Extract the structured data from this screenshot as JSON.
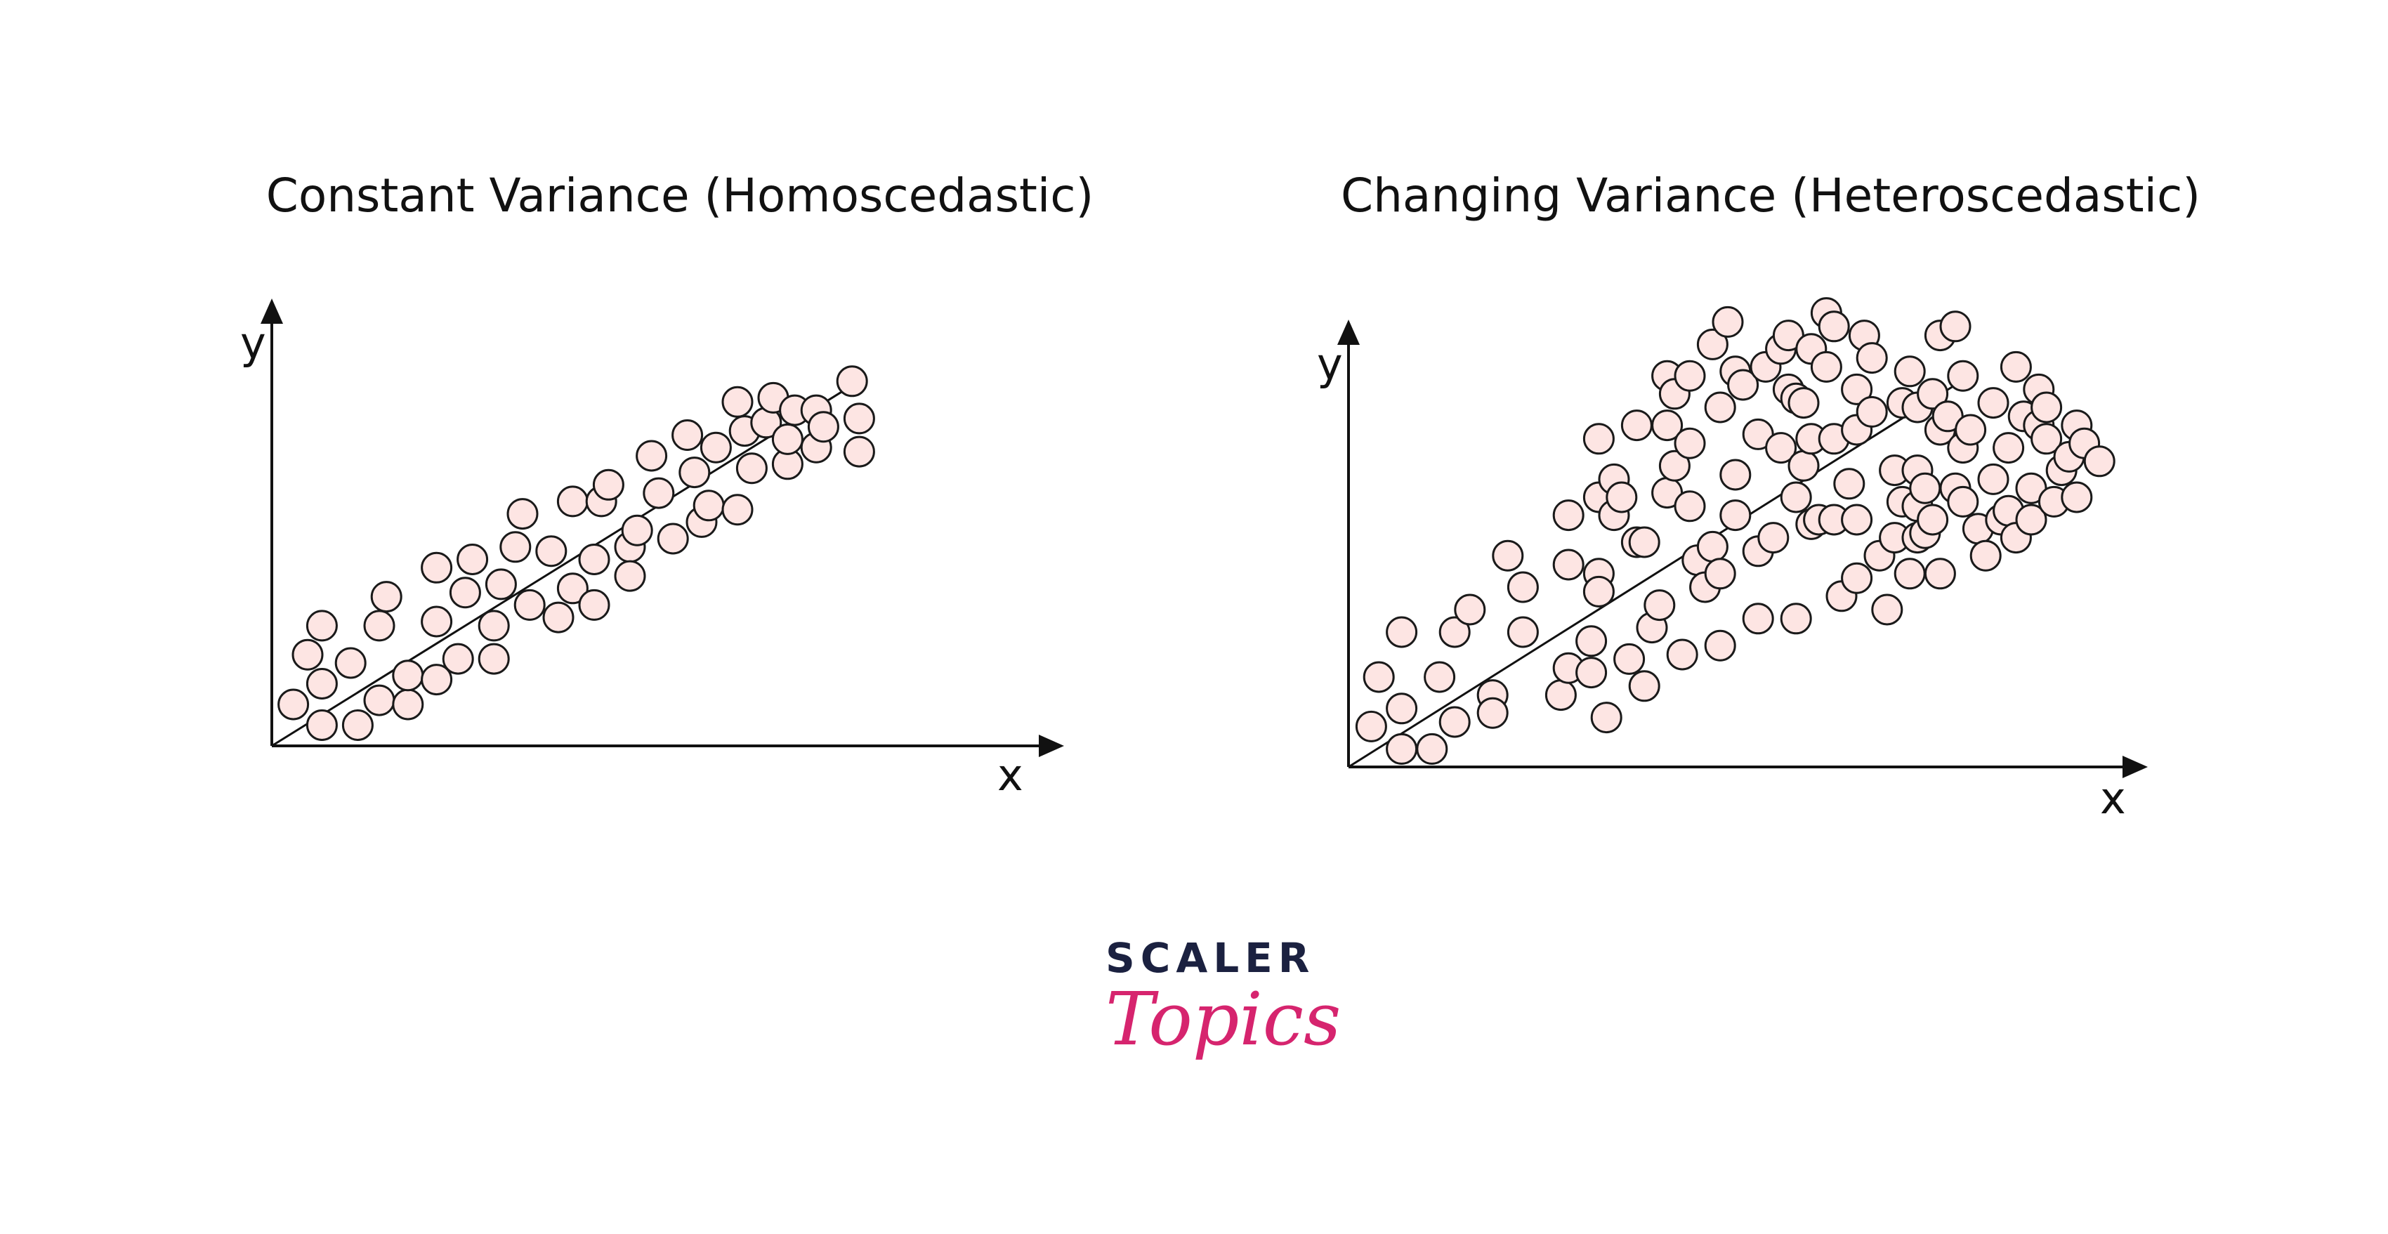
{
  "colors": {
    "marker_fill": "#fde5e3",
    "marker_stroke": "#1a1a1a",
    "axis": "#111111",
    "logo_dark": "#1b2140",
    "logo_pink": "#d6246e"
  },
  "branding": {
    "line1": "SCALER",
    "line2": "Topics"
  },
  "chart_data": [
    {
      "type": "scatter",
      "title": "Constant Variance (Homoscedastic)",
      "xlabel": "x",
      "ylabel": "y",
      "xlim": [
        0,
        100
      ],
      "ylim": [
        0,
        100
      ],
      "axis_ticks": false,
      "grid": false,
      "trend_line": {
        "x": [
          0,
          81
        ],
        "y": [
          0,
          87
        ]
      },
      "points": [
        [
          3,
          10
        ],
        [
          5,
          22
        ],
        [
          7,
          5
        ],
        [
          7,
          15
        ],
        [
          7,
          29
        ],
        [
          11,
          20
        ],
        [
          12,
          5
        ],
        [
          15,
          11
        ],
        [
          15,
          29
        ],
        [
          16,
          36
        ],
        [
          19,
          10
        ],
        [
          19,
          17
        ],
        [
          23,
          16
        ],
        [
          23,
          30
        ],
        [
          23,
          43
        ],
        [
          26,
          21
        ],
        [
          27,
          37
        ],
        [
          28,
          45
        ],
        [
          31,
          21
        ],
        [
          31,
          29
        ],
        [
          32,
          39
        ],
        [
          34,
          48
        ],
        [
          35,
          56
        ],
        [
          36,
          34
        ],
        [
          39,
          47
        ],
        [
          40,
          31
        ],
        [
          42,
          59
        ],
        [
          42,
          38
        ],
        [
          45,
          45
        ],
        [
          45,
          34
        ],
        [
          46,
          59
        ],
        [
          47,
          63
        ],
        [
          50,
          48
        ],
        [
          50,
          41
        ],
        [
          51,
          52
        ],
        [
          53,
          70
        ],
        [
          54,
          61
        ],
        [
          56,
          50
        ],
        [
          58,
          75
        ],
        [
          59,
          66
        ],
        [
          60,
          54
        ],
        [
          61,
          58
        ],
        [
          62,
          72
        ],
        [
          65,
          57
        ],
        [
          65,
          83
        ],
        [
          66,
          76
        ],
        [
          67,
          67
        ],
        [
          69,
          78
        ],
        [
          70,
          84
        ],
        [
          72,
          68
        ],
        [
          72,
          74
        ],
        [
          73,
          81
        ],
        [
          76,
          81
        ],
        [
          76,
          72
        ],
        [
          77,
          77
        ],
        [
          81,
          88
        ],
        [
          82,
          79
        ],
        [
          82,
          71
        ]
      ]
    },
    {
      "type": "scatter",
      "title": "Changing Variance (Heteroscedastic)",
      "xlabel": "x",
      "ylabel": "y",
      "xlim": [
        0,
        100
      ],
      "ylim": [
        0,
        100
      ],
      "axis_ticks": false,
      "grid": false,
      "trend_line": {
        "x": [
          0,
          80
        ],
        "y": [
          0,
          85
        ]
      },
      "points": [
        [
          3,
          9
        ],
        [
          4,
          20
        ],
        [
          7,
          13
        ],
        [
          7,
          4
        ],
        [
          7,
          30
        ],
        [
          11,
          4
        ],
        [
          12,
          20
        ],
        [
          14,
          10
        ],
        [
          14,
          30
        ],
        [
          16,
          35
        ],
        [
          19,
          16
        ],
        [
          19,
          12
        ],
        [
          21,
          47
        ],
        [
          23,
          30
        ],
        [
          23,
          40
        ],
        [
          28,
          16
        ],
        [
          29,
          22
        ],
        [
          29,
          45
        ],
        [
          29,
          56
        ],
        [
          32,
          21
        ],
        [
          32,
          28
        ],
        [
          33,
          43
        ],
        [
          33,
          39
        ],
        [
          33,
          73
        ],
        [
          33,
          60
        ],
        [
          34,
          11
        ],
        [
          35,
          64
        ],
        [
          35,
          56
        ],
        [
          36,
          60
        ],
        [
          38,
          50
        ],
        [
          37,
          24
        ],
        [
          38,
          76
        ],
        [
          39,
          18
        ],
        [
          39,
          50
        ],
        [
          40,
          31
        ],
        [
          41,
          36
        ],
        [
          42,
          61
        ],
        [
          42,
          76
        ],
        [
          42,
          87
        ],
        [
          43,
          83
        ],
        [
          43,
          67
        ],
        [
          44,
          25
        ],
        [
          45,
          72
        ],
        [
          45,
          58
        ],
        [
          45,
          87
        ],
        [
          46,
          46
        ],
        [
          47,
          40
        ],
        [
          48,
          94
        ],
        [
          48,
          49
        ],
        [
          49,
          27
        ],
        [
          49,
          43
        ],
        [
          49,
          80
        ],
        [
          50,
          99
        ],
        [
          51,
          65
        ],
        [
          51,
          56
        ],
        [
          51,
          88
        ],
        [
          52,
          85
        ],
        [
          54,
          74
        ],
        [
          54,
          48
        ],
        [
          54,
          33
        ],
        [
          55,
          89
        ],
        [
          56,
          51
        ],
        [
          57,
          71
        ],
        [
          57,
          93
        ],
        [
          58,
          84
        ],
        [
          58,
          96
        ],
        [
          59,
          82
        ],
        [
          59,
          60
        ],
        [
          59,
          33
        ],
        [
          60,
          81
        ],
        [
          60,
          67
        ],
        [
          61,
          93
        ],
        [
          61,
          73
        ],
        [
          61,
          54
        ],
        [
          62,
          55
        ],
        [
          63,
          101
        ],
        [
          63,
          89
        ],
        [
          64,
          98
        ],
        [
          64,
          73
        ],
        [
          64,
          55
        ],
        [
          65,
          38
        ],
        [
          66,
          63
        ],
        [
          67,
          55
        ],
        [
          67,
          84
        ],
        [
          67,
          75
        ],
        [
          67,
          42
        ],
        [
          68,
          96
        ],
        [
          69,
          91
        ],
        [
          69,
          79
        ],
        [
          70,
          47
        ],
        [
          71,
          35
        ],
        [
          72,
          51
        ],
        [
          72,
          66
        ],
        [
          73,
          59
        ],
        [
          73,
          81
        ],
        [
          74,
          43
        ],
        [
          74,
          88
        ],
        [
          75,
          80
        ],
        [
          75,
          66
        ],
        [
          75,
          58
        ],
        [
          75,
          51
        ],
        [
          76,
          52
        ],
        [
          76,
          62
        ],
        [
          77,
          55
        ],
        [
          77,
          83
        ],
        [
          78,
          43
        ],
        [
          78,
          75
        ],
        [
          78,
          96
        ],
        [
          79,
          78
        ],
        [
          80,
          62
        ],
        [
          80,
          98
        ],
        [
          81,
          87
        ],
        [
          81,
          71
        ],
        [
          81,
          59
        ],
        [
          82,
          75
        ],
        [
          83,
          53
        ],
        [
          84,
          47
        ],
        [
          85,
          81
        ],
        [
          85,
          64
        ],
        [
          86,
          55
        ],
        [
          87,
          57
        ],
        [
          87,
          71
        ],
        [
          88,
          89
        ],
        [
          88,
          51
        ],
        [
          89,
          78
        ],
        [
          90,
          55
        ],
        [
          90,
          62
        ],
        [
          91,
          84
        ],
        [
          91,
          76
        ],
        [
          92,
          80
        ],
        [
          92,
          73
        ],
        [
          93,
          59
        ],
        [
          94,
          66
        ],
        [
          95,
          69
        ],
        [
          96,
          60
        ],
        [
          96,
          76
        ],
        [
          97,
          72
        ],
        [
          99,
          68
        ]
      ]
    }
  ]
}
